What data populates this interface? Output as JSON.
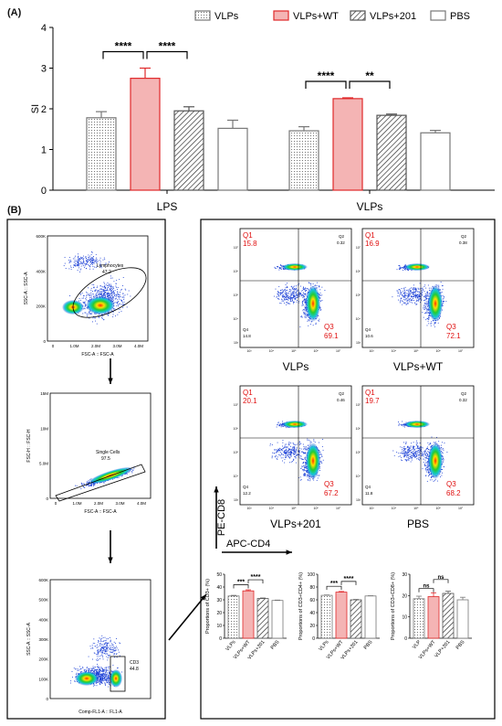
{
  "figure": {
    "panel_a_label": "(A)",
    "panel_b_label": "(B)"
  },
  "colors": {
    "wt_red": "#e0282a",
    "wt_fill": "#f4b4b4",
    "q_red": "#e01010",
    "dot_blue": "#1a3fd6"
  },
  "chart_data": [
    {
      "id": "si",
      "type": "bar",
      "ylabel": "SI",
      "xlabel": "",
      "ylim": [
        0,
        4
      ],
      "yticks": [
        0,
        1,
        2,
        3,
        4
      ],
      "categories": [
        "LPS",
        "VLPs"
      ],
      "legend_position": "top-right",
      "series": [
        {
          "name": "VLPs",
          "pattern": "dots",
          "values": [
            1.78,
            1.46
          ],
          "errors": [
            0.15,
            0.1
          ]
        },
        {
          "name": "VLPs+WT",
          "pattern": "red",
          "values": [
            2.75,
            2.25
          ],
          "errors": [
            0.25,
            0.02
          ]
        },
        {
          "name": "VLPs+201",
          "pattern": "hatch",
          "values": [
            1.95,
            1.84
          ],
          "errors": [
            0.1,
            0.03
          ]
        },
        {
          "name": "PBS",
          "pattern": "white",
          "values": [
            1.52,
            1.41
          ],
          "errors": [
            0.2,
            0.06
          ]
        }
      ],
      "significance": [
        {
          "category": 0,
          "from": 0,
          "to": 1,
          "label": "****"
        },
        {
          "category": 0,
          "from": 1,
          "to": 2,
          "label": "****"
        },
        {
          "category": 1,
          "from": 0,
          "to": 1,
          "label": "****"
        },
        {
          "category": 1,
          "from": 1,
          "to": 2,
          "label": "**"
        }
      ]
    },
    {
      "id": "cd3",
      "type": "bar",
      "ylabel": "Proportions of CD3+ (%)",
      "ylim": [
        0,
        50
      ],
      "yticks": [
        0,
        10,
        20,
        30,
        40,
        50
      ],
      "categories": [
        "VLPs",
        "VLPs+WT",
        "VLPs+201",
        "PBS"
      ],
      "values": [
        33,
        37,
        31,
        29.5
      ],
      "errors": [
        0.5,
        0.8,
        0.4,
        0.3
      ],
      "patterns": [
        "dots",
        "red",
        "hatch",
        "white"
      ],
      "significance": [
        {
          "from": 0,
          "to": 1,
          "label": "***"
        },
        {
          "from": 1,
          "to": 2,
          "label": "****"
        }
      ]
    },
    {
      "id": "cd4",
      "type": "bar",
      "ylabel": "Proportions of CD3+CD4+ (%)",
      "ylim": [
        0,
        100
      ],
      "yticks": [
        0,
        20,
        40,
        60,
        80,
        100
      ],
      "categories": [
        "VLPs",
        "VLPs+WT",
        "VLPs+201",
        "PBS"
      ],
      "values": [
        67,
        72,
        60,
        66
      ],
      "errors": [
        0.6,
        1.0,
        0.5,
        0.4
      ],
      "patterns": [
        "dots",
        "red",
        "hatch",
        "white"
      ],
      "significance": [
        {
          "from": 0,
          "to": 1,
          "label": "***"
        },
        {
          "from": 1,
          "to": 2,
          "label": "****"
        }
      ]
    },
    {
      "id": "cd8",
      "type": "bar",
      "ylabel": "Proportions of CD3+CD8+ (%)",
      "ylim": [
        0,
        30
      ],
      "yticks": [
        0,
        10,
        20,
        30
      ],
      "categories": [
        "VLP",
        "VLPs+WT",
        "VLP+201",
        "PBS"
      ],
      "values": [
        18.5,
        19.5,
        21,
        18
      ],
      "errors": [
        1.2,
        1.8,
        1.0,
        1.2
      ],
      "patterns": [
        "dots",
        "red",
        "hatch",
        "white"
      ],
      "significance": [
        {
          "from": 0,
          "to": 1,
          "label": "ns"
        },
        {
          "from": 1,
          "to": 2,
          "label": "ns"
        }
      ]
    }
  ],
  "gating": {
    "plot1": {
      "xlabel": "FSC-A :: FSC-A",
      "ylabel": "SSC-A :: SSC-A",
      "gate_label": "Lymphocytes",
      "gate_value": "47.2",
      "xticks": [
        "0",
        "1.0M",
        "2.0M",
        "3.0M",
        "4.0M"
      ],
      "yticks": [
        "0",
        "200K",
        "400K",
        "600K"
      ]
    },
    "plot2": {
      "xlabel": "FSC-A :: FSC-A",
      "ylabel": "FSC-H :: FSC-H",
      "gate_label": "Single Cells",
      "gate_value": "97.5",
      "xticks": [
        "0",
        "1.0M",
        "2.0M",
        "3.0M",
        "4.0M"
      ],
      "yticks": [
        "0",
        "5.0M",
        "10M",
        "15M"
      ]
    },
    "plot3": {
      "xlabel": "Comp-FL1-A :: FL1-A",
      "ylabel": "SSC-A :: SSC-A",
      "gate_label": "CD3",
      "gate_value": "44.8",
      "yticks": [
        "0",
        "100K",
        "200K",
        "300K",
        "400K",
        "500K",
        "600K"
      ]
    }
  },
  "flow": {
    "x_axis_label": "APC-CD4",
    "y_axis_label": "PE-CD8",
    "plots": [
      {
        "name": "VLPs",
        "q1": "15.8",
        "q2": "0.32",
        "q3": "69.1",
        "q4": "14.8"
      },
      {
        "name": "VLPs+WT",
        "q1": "16.9",
        "q2": "0.38",
        "q3": "72.1",
        "q4": "10.6"
      },
      {
        "name": "VLPs+201",
        "q1": "20.1",
        "q2": "0.46",
        "q3": "67.2",
        "q4": "12.2"
      },
      {
        "name": "PBS",
        "q1": "19.7",
        "q2": "0.32",
        "q3": "68.2",
        "q4": "11.8"
      }
    ],
    "q_labels": [
      "Q1",
      "Q2",
      "Q3",
      "Q4"
    ]
  }
}
